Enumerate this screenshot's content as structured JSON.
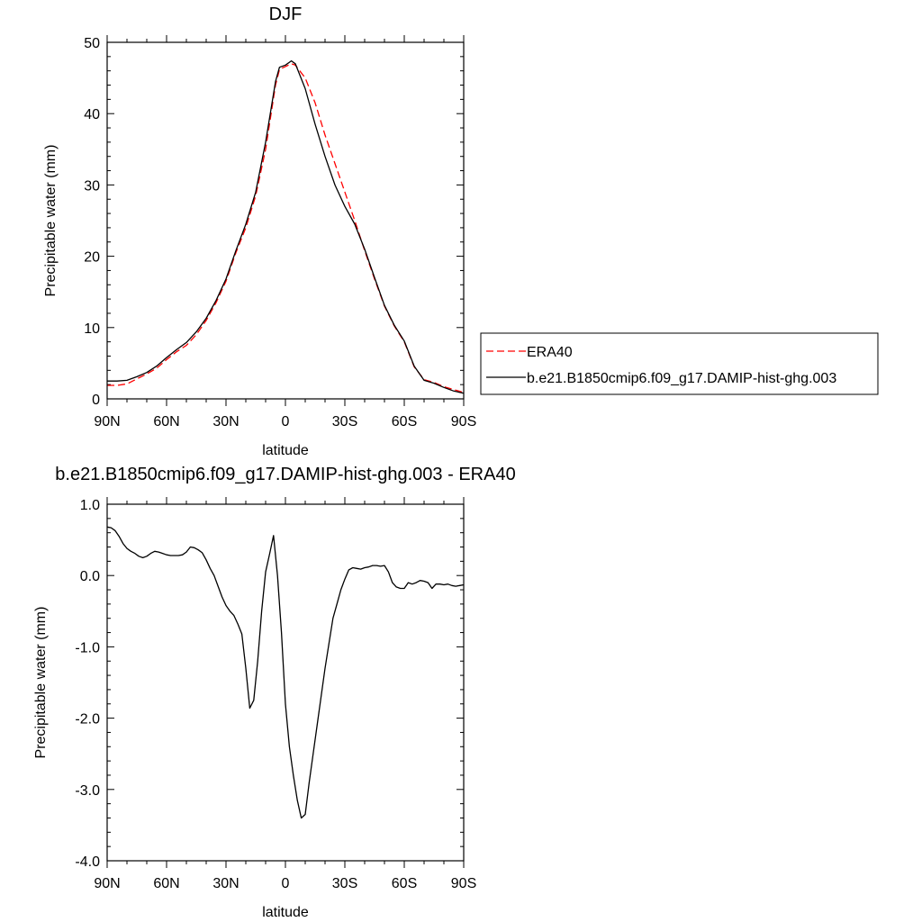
{
  "chart_data": [
    {
      "type": "line",
      "title": "DJF",
      "xlabel": "latitude",
      "ylabel": "Precipitable water (mm)",
      "xlim": [
        90,
        -90
      ],
      "ylim": [
        0,
        50
      ],
      "x_ticks": [
        90,
        60,
        30,
        0,
        -30,
        -60,
        -90
      ],
      "x_tick_labels": [
        "90N",
        "60N",
        "30N",
        "0",
        "30S",
        "60S",
        "90S"
      ],
      "y_ticks": [
        0,
        10,
        20,
        30,
        40,
        50
      ],
      "y_tick_labels": [
        "0",
        "10",
        "20",
        "30",
        "40",
        "50"
      ],
      "grid": false,
      "legend_position": "right",
      "series": [
        {
          "name": "ERA40",
          "color": "#ff0000",
          "dash": "dashed",
          "x": [
            90,
            85,
            80,
            75,
            70,
            65,
            60,
            55,
            50,
            45,
            40,
            35,
            30,
            25,
            20,
            15,
            10,
            5,
            3,
            0,
            -3,
            -5,
            -10,
            -15,
            -20,
            -25,
            -30,
            -35,
            -40,
            -45,
            -50,
            -55,
            -60,
            -65,
            -70,
            -75,
            -80,
            -85,
            -90
          ],
          "y": [
            1.9,
            1.9,
            2.1,
            2.8,
            3.5,
            4.3,
            5.5,
            6.6,
            7.5,
            9.0,
            11.0,
            13.5,
            16.5,
            20.5,
            24.0,
            28.5,
            35.0,
            44.0,
            46.2,
            46.6,
            47.0,
            46.8,
            45.0,
            41.5,
            37.0,
            33.0,
            29.0,
            25.0,
            20.8,
            16.8,
            13.0,
            10.2,
            8.0,
            4.5,
            2.7,
            2.3,
            1.7,
            1.3,
            0.9
          ]
        },
        {
          "name": "b.e21.B1850cmip6.f09_g17.DAMIP-hist-ghg.003",
          "color": "#000000",
          "dash": "solid",
          "x": [
            90,
            85,
            80,
            75,
            70,
            65,
            60,
            55,
            50,
            45,
            40,
            35,
            30,
            25,
            20,
            15,
            10,
            5,
            3,
            0,
            -3,
            -5,
            -10,
            -15,
            -20,
            -25,
            -30,
            -35,
            -40,
            -45,
            -50,
            -55,
            -60,
            -65,
            -70,
            -75,
            -80,
            -85,
            -90
          ],
          "y": [
            2.5,
            2.5,
            2.6,
            3.1,
            3.7,
            4.6,
            5.8,
            6.9,
            7.9,
            9.4,
            11.3,
            13.8,
            16.8,
            20.8,
            24.5,
            29.0,
            36.0,
            44.5,
            46.5,
            46.8,
            47.4,
            47.0,
            43.5,
            38.5,
            34.0,
            30.0,
            27.0,
            24.5,
            21.0,
            17.0,
            13.1,
            10.3,
            8.1,
            4.6,
            2.6,
            2.2,
            1.6,
            1.1,
            0.8
          ]
        }
      ]
    },
    {
      "type": "line",
      "title": "b.e21.B1850cmip6.f09_g17.DAMIP-hist-ghg.003 - ERA40",
      "xlabel": "latitude",
      "ylabel": "Precipitable water (mm)",
      "xlim": [
        90,
        -90
      ],
      "ylim": [
        -4.0,
        1.0
      ],
      "x_ticks": [
        90,
        60,
        30,
        0,
        -30,
        -60,
        -90
      ],
      "x_tick_labels": [
        "90N",
        "60N",
        "30N",
        "0",
        "30S",
        "60S",
        "90S"
      ],
      "y_ticks": [
        1.0,
        0.0,
        -1.0,
        -2.0,
        -3.0,
        -4.0
      ],
      "y_tick_labels": [
        "1.0",
        "0.0",
        "-1.0",
        "-2.0",
        "-3.0",
        "-4.0"
      ],
      "grid": false,
      "series": [
        {
          "color": "#000000",
          "dash": "solid",
          "x": [
            90,
            88,
            86,
            84,
            82,
            80,
            78,
            76,
            74,
            72,
            70,
            68,
            66,
            64,
            62,
            60,
            58,
            56,
            54,
            52,
            50,
            48,
            46,
            44,
            42,
            40,
            38,
            36,
            34,
            32,
            30,
            28,
            26,
            24,
            22,
            20,
            18,
            16,
            14,
            12,
            10,
            8,
            6,
            4,
            2,
            0,
            -2,
            -4,
            -6,
            -8,
            -10,
            -12,
            -14,
            -16,
            -18,
            -20,
            -22,
            -24,
            -26,
            -28,
            -30,
            -32,
            -34,
            -36,
            -38,
            -40,
            -42,
            -44,
            -46,
            -48,
            -50,
            -52,
            -54,
            -56,
            -58,
            -60,
            -62,
            -64,
            -66,
            -68,
            -70,
            -72,
            -74,
            -76,
            -78,
            -80,
            -82,
            -84,
            -86,
            -88,
            -90
          ],
          "y": [
            0.68,
            0.67,
            0.63,
            0.55,
            0.45,
            0.38,
            0.34,
            0.31,
            0.27,
            0.25,
            0.27,
            0.31,
            0.34,
            0.33,
            0.31,
            0.29,
            0.28,
            0.28,
            0.28,
            0.29,
            0.33,
            0.4,
            0.39,
            0.36,
            0.32,
            0.22,
            0.1,
            0.0,
            -0.15,
            -0.3,
            -0.42,
            -0.5,
            -0.56,
            -0.68,
            -0.82,
            -1.3,
            -1.86,
            -1.75,
            -1.2,
            -0.5,
            0.05,
            0.3,
            0.56,
            0.0,
            -0.8,
            -1.8,
            -2.4,
            -2.8,
            -3.15,
            -3.4,
            -3.35,
            -2.9,
            -2.5,
            -2.1,
            -1.7,
            -1.3,
            -0.95,
            -0.6,
            -0.4,
            -0.2,
            -0.05,
            0.08,
            0.11,
            0.1,
            0.09,
            0.11,
            0.12,
            0.14,
            0.14,
            0.13,
            0.14,
            0.05,
            -0.1,
            -0.16,
            -0.18,
            -0.18,
            -0.1,
            -0.12,
            -0.1,
            -0.07,
            -0.08,
            -0.1,
            -0.18,
            -0.12,
            -0.12,
            -0.13,
            -0.12,
            -0.14,
            -0.15,
            -0.14,
            -0.13
          ]
        }
      ]
    }
  ]
}
